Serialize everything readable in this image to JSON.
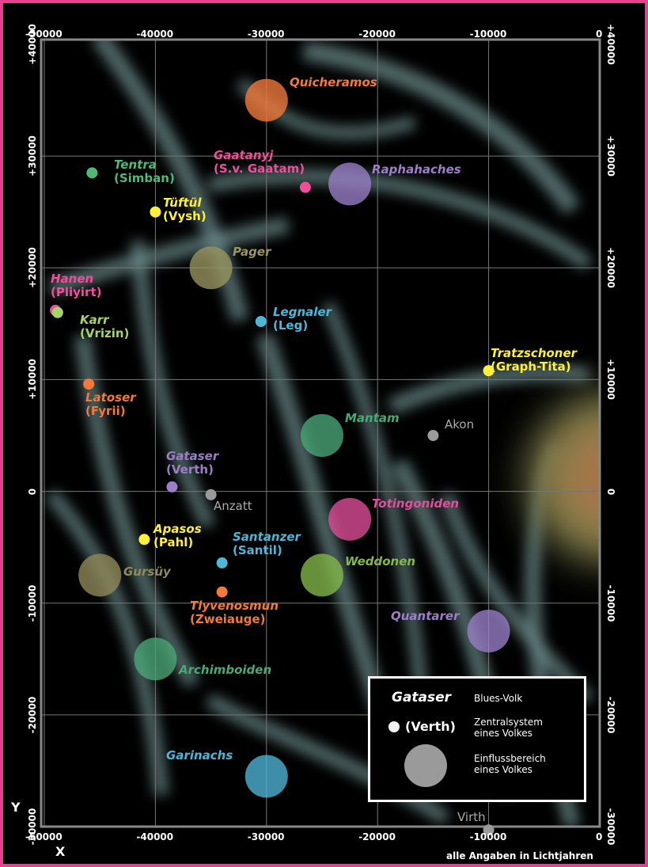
{
  "map": {
    "x_range": [
      -51000,
      0
    ],
    "y_range": [
      -30500,
      40500
    ],
    "ticks_top": [
      "-50000",
      "-40000",
      "-30000",
      "-20000",
      "-10000",
      "0"
    ],
    "ticks_bottom": [
      "-50000",
      "-40000",
      "-30000",
      "-20000",
      "-10000",
      "0"
    ],
    "ticks_left": [
      "+40000",
      "+30000",
      "+20000",
      "+10000",
      "0",
      "-10000",
      "-20000",
      "-30000"
    ],
    "ticks_right": [
      "+40000",
      "+30000",
      "+20000",
      "+10000",
      "0",
      "-10000",
      "-20000",
      "-30000"
    ],
    "axis_letter_x": "X",
    "axis_letter_y": "Y",
    "footnote": "alle Angaben in Lichtjahren"
  },
  "peoples": [
    {
      "name": "Quicheramos",
      "sub": "",
      "color": "#f47a3c",
      "x": -30000,
      "y": 35000,
      "kind": "influence"
    },
    {
      "name": "Tentra",
      "sub": "(Simban)",
      "color": "#52b87a",
      "x": -45700,
      "y": 28500,
      "kind": "central"
    },
    {
      "name": "Gaatanyj",
      "sub": "(S.v. Gaatam)",
      "color": "#ef4f9a",
      "x": -26500,
      "y": 27200,
      "kind": "central"
    },
    {
      "name": "Raphahaches",
      "sub": "",
      "color": "#9b7fc8",
      "x": -22500,
      "y": 27500,
      "kind": "influence"
    },
    {
      "name": "Tüftül",
      "sub": "(Vysh)",
      "color": "#fff03a",
      "x": -40000,
      "y": 25000,
      "kind": "central"
    },
    {
      "name": "Pager",
      "sub": "",
      "color": "#9a9662",
      "x": -35000,
      "y": 20000,
      "kind": "influence"
    },
    {
      "name": "Hanen",
      "sub": "(Pliyirt)",
      "color": "#ef4f9a",
      "x": -49000,
      "y": 16200,
      "kind": "central"
    },
    {
      "name": "Karr",
      "sub": "(Vrizin)",
      "color": "#a9d46a",
      "x": -48800,
      "y": 16000,
      "kind": "central"
    },
    {
      "name": "Legnaler",
      "sub": "(Leg)",
      "color": "#4fb6d8",
      "x": -30500,
      "y": 15200,
      "kind": "central"
    },
    {
      "name": "Tratzschoner",
      "sub": "(Graph-Tita)",
      "color": "#fff03a",
      "x": -10000,
      "y": 10800,
      "kind": "central"
    },
    {
      "name": "Latoser",
      "sub": "(Fyrii)",
      "color": "#f47a3c",
      "x": -46000,
      "y": 9600,
      "kind": "central"
    },
    {
      "name": "Mantam",
      "sub": "",
      "color": "#4aa878",
      "x": -25000,
      "y": 5000,
      "kind": "influence"
    },
    {
      "name": "Akon",
      "sub": "",
      "color": "#aaaaaa",
      "x": -15000,
      "y": 5000,
      "kind": "system"
    },
    {
      "name": "Gataser",
      "sub": "(Verth)",
      "color": "#9b7fc8",
      "x": -38500,
      "y": 400,
      "kind": "central"
    },
    {
      "name": "Anzatt",
      "sub": "",
      "color": "#aaaaaa",
      "x": -35000,
      "y": -300,
      "kind": "system"
    },
    {
      "name": "Totingoniden",
      "sub": "",
      "color": "#e0509a",
      "x": -22500,
      "y": -2500,
      "kind": "influence"
    },
    {
      "name": "Apasos",
      "sub": "(Pahl)",
      "color": "#fff03a",
      "x": -41000,
      "y": -4300,
      "kind": "central"
    },
    {
      "name": "Santanzer",
      "sub": "(Santil)",
      "color": "#4fb6d8",
      "x": -34000,
      "y": -6400,
      "kind": "central"
    },
    {
      "name": "Gursüy",
      "sub": "",
      "color": "#8f8a5a",
      "x": -45000,
      "y": -7500,
      "kind": "influence"
    },
    {
      "name": "Weddonen",
      "sub": "",
      "color": "#84b84a",
      "x": -25000,
      "y": -7500,
      "kind": "influence"
    },
    {
      "name": "Tlyvenosmun",
      "sub": "(Zweiauge)",
      "color": "#f47a3c",
      "x": -34000,
      "y": -9000,
      "kind": "central"
    },
    {
      "name": "Quantarer",
      "sub": "",
      "color": "#9b7fc8",
      "x": -10000,
      "y": -12500,
      "kind": "influence"
    },
    {
      "name": "Archimboiden",
      "sub": "",
      "color": "#4aa878",
      "x": -40000,
      "y": -15000,
      "kind": "influence"
    },
    {
      "name": "Garinachs",
      "sub": "",
      "color": "#4fb6d8",
      "x": -30000,
      "y": -25500,
      "kind": "influence"
    },
    {
      "name": "Virth",
      "sub": "",
      "color": "#aaaaaa",
      "x": -10000,
      "y": -30300,
      "kind": "system"
    }
  ],
  "legend": {
    "name": "Gataser",
    "name_desc": "Blues-Volk",
    "system_label": "(Verth)",
    "system_desc_1": "Zentralsystem",
    "system_desc_2": "eines Volkes",
    "influence_desc_1": "Einflussbereich",
    "influence_desc_2": "eines Volkes"
  }
}
